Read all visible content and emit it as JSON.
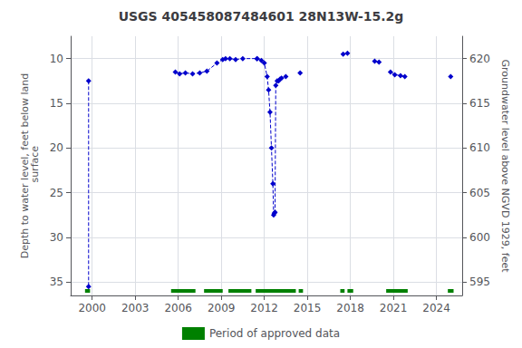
{
  "chart_data": {
    "type": "line",
    "title": "USGS 405458087484601 28N13W-15.2g",
    "ylabel": "Depth to water level, feet below land\n surface",
    "y2label": "Groundwater level above NGVD 1929, feet",
    "xlim": [
      1998.5,
      2025.8
    ],
    "xticks": [
      2000,
      2003,
      2006,
      2009,
      2012,
      2015,
      2018,
      2021,
      2024
    ],
    "ylim": [
      36.5,
      7.5
    ],
    "yticks": [
      10,
      15,
      20,
      25,
      30,
      35
    ],
    "y2lim": [
      593.5,
      622.5
    ],
    "y2ticks": [
      595,
      600,
      605,
      610,
      615,
      620
    ],
    "grid": true,
    "legend": "bottom",
    "series": [
      {
        "x": [
          1999.75,
          1999.75
        ],
        "values": [
          12.5,
          35.5
        ],
        "color": "#0000cc",
        "marker": "diamond",
        "line_style": "dashed"
      },
      {
        "x": [
          2005.8,
          2006.1,
          2006.5,
          2007.0,
          2007.5,
          2008.0,
          2008.7,
          2009.1,
          2009.3,
          2009.6,
          2010.0,
          2010.5,
          2011.5
        ],
        "values": [
          11.5,
          11.7,
          11.6,
          11.7,
          11.6,
          11.4,
          10.5,
          10.1,
          10.0,
          10.0,
          10.1,
          10.0,
          10.0
        ],
        "color": "#0000cc",
        "marker": "diamond",
        "line_style": "dashed"
      },
      {
        "x": [
          2011.5,
          2011.8,
          2012.0,
          2012.2,
          2012.3,
          2012.4,
          2012.5,
          2012.6,
          2012.65,
          2012.7,
          2012.75,
          2012.8,
          2012.9,
          2013.0,
          2013.1,
          2013.2,
          2013.5
        ],
        "values": [
          10.0,
          10.2,
          10.5,
          12.0,
          13.5,
          16.0,
          20.0,
          24.0,
          27.5,
          27.3,
          27.2,
          13.0,
          12.5,
          12.5,
          12.3,
          12.2,
          12.0
        ],
        "color": "#0000cc",
        "marker": "diamond",
        "line_style": "dashed"
      },
      {
        "x": [
          2014.5
        ],
        "values": [
          11.6
        ],
        "color": "#0000cc",
        "marker": "diamond",
        "line_style": "dashed"
      },
      {
        "x": [
          2017.5,
          2017.8
        ],
        "values": [
          9.5,
          9.4
        ],
        "color": "#0000cc",
        "marker": "diamond",
        "line_style": "dashed"
      },
      {
        "x": [
          2019.7,
          2020.0
        ],
        "values": [
          10.3,
          10.4
        ],
        "color": "#0000cc",
        "marker": "diamond",
        "line_style": "dashed"
      },
      {
        "x": [
          2020.8,
          2021.1,
          2021.5,
          2021.8
        ],
        "values": [
          11.5,
          11.8,
          11.9,
          12.0
        ],
        "color": "#0000cc",
        "marker": "diamond",
        "line_style": "dashed"
      },
      {
        "x": [
          2025.0
        ],
        "values": [
          12.0
        ],
        "color": "#0000cc",
        "marker": "diamond",
        "line_style": "dashed"
      },
      {
        "name": "Period of approved data",
        "type": "interval",
        "color": "#008000",
        "intervals": [
          [
            1999.5,
            1999.85
          ],
          [
            2005.5,
            2007.2
          ],
          [
            2007.8,
            2009.1
          ],
          [
            2009.5,
            2011.1
          ],
          [
            2011.4,
            2014.2
          ],
          [
            2014.4,
            2014.7
          ],
          [
            2017.3,
            2017.6
          ],
          [
            2017.8,
            2018.2
          ],
          [
            2020.5,
            2022.0
          ],
          [
            2024.8,
            2025.2
          ]
        ]
      }
    ]
  }
}
